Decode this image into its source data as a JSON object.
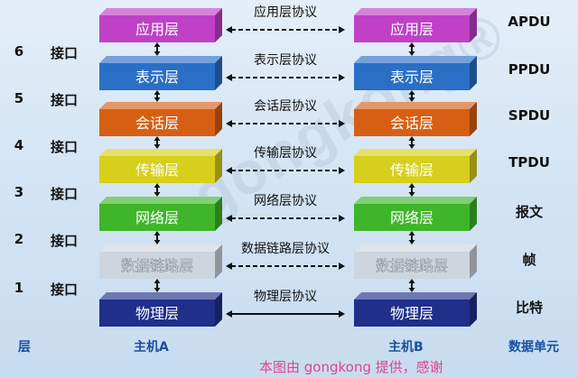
{
  "layers": [
    {
      "name": "应用层",
      "protocol": "应用层协议",
      "pdu": "APDU",
      "color": "#c040c8"
    },
    {
      "name": "表示层",
      "protocol": "表示层协议",
      "pdu": "PPDU",
      "color": "#2a6fc6"
    },
    {
      "name": "会话层",
      "protocol": "会话层协议",
      "pdu": "SPDU",
      "color": "#d75f14"
    },
    {
      "name": "传输层",
      "protocol": "传输层协议",
      "pdu": "TPDU",
      "color": "#d6cf1c"
    },
    {
      "name": "网络层",
      "protocol": "网络层协议",
      "pdu": "报文",
      "color": "#3fb52a"
    },
    {
      "name": "数据链路层",
      "protocol": "数据链路层协议",
      "pdu": "帧",
      "color": "#cdd5de"
    },
    {
      "name": "物理层",
      "protocol": "物理层协议",
      "pdu": "比特",
      "color": "#1f2f8a"
    }
  ],
  "interfaces": [
    {
      "num": "6",
      "label": "接口"
    },
    {
      "num": "5",
      "label": "接口"
    },
    {
      "num": "4",
      "label": "接口"
    },
    {
      "num": "3",
      "label": "接口"
    },
    {
      "num": "2",
      "label": "接口"
    },
    {
      "num": "1",
      "label": "接口"
    }
  ],
  "footer": {
    "layer_label": "层",
    "host_a": "主机A",
    "host_b": "主机B",
    "pdu_label": "数据单元"
  },
  "watermark": {
    "logo": "gongkong®",
    "credit": "本图由 gongkong 提供，感谢"
  }
}
